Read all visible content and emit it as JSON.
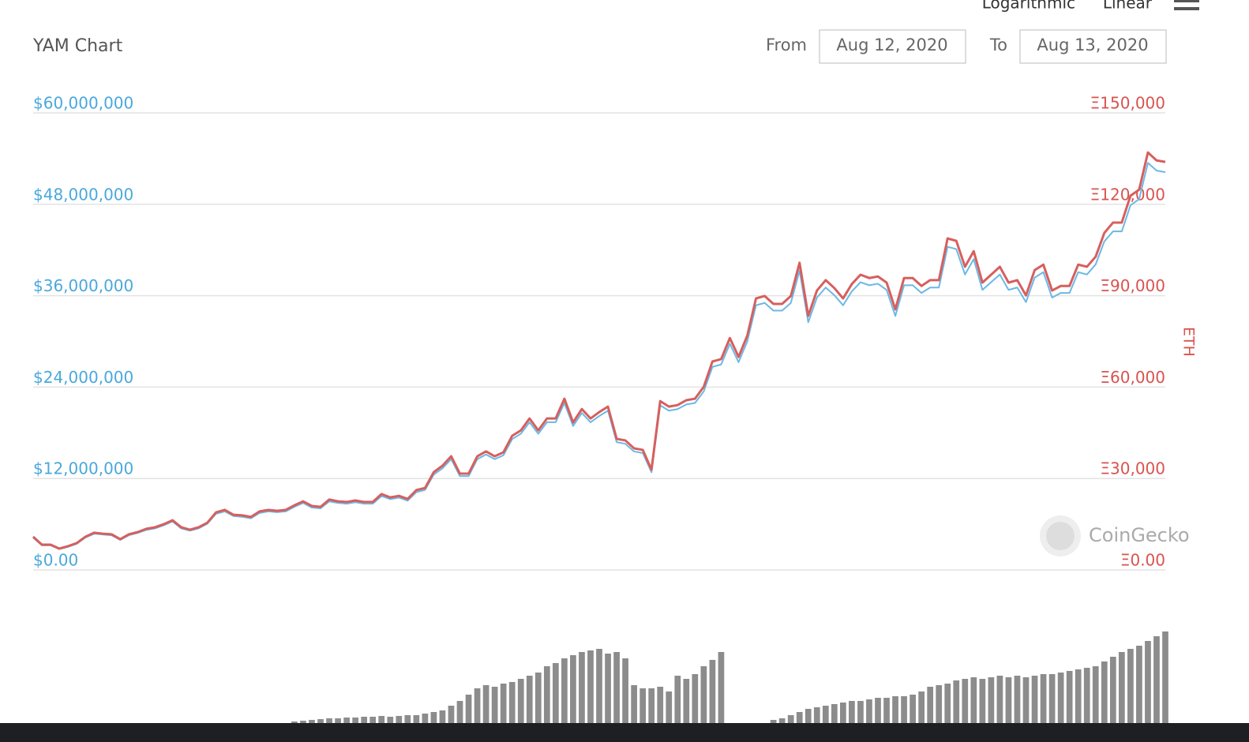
{
  "chart_data": {
    "type": "line",
    "title": "YAM Chart",
    "scale_options": [
      "Logarithmic",
      "Linear"
    ],
    "from_label": "From",
    "from_date": "Aug 12, 2020",
    "to_label": "To",
    "to_date": "Aug 13, 2020",
    "watermark": "CoinGecko",
    "y2label": "ETH",
    "ylim": [
      0,
      60000000
    ],
    "yticks": [
      {
        "value": 0,
        "label": "$0.00"
      },
      {
        "value": 12000000,
        "label": "$12,000,000"
      },
      {
        "value": 24000000,
        "label": "$24,000,000"
      },
      {
        "value": 36000000,
        "label": "$36,000,000"
      },
      {
        "value": 48000000,
        "label": "$48,000,000"
      },
      {
        "value": 60000000,
        "label": "$60,000,000"
      }
    ],
    "y2lim": [
      0,
      150000
    ],
    "y2ticks": [
      {
        "value": 0,
        "label": "Ξ0.00"
      },
      {
        "value": 30000,
        "label": "Ξ30,000"
      },
      {
        "value": 60000,
        "label": "Ξ60,000"
      },
      {
        "value": 90000,
        "label": "Ξ90,000"
      },
      {
        "value": 120000,
        "label": "Ξ120,000"
      },
      {
        "value": 150000,
        "label": "Ξ150,000"
      }
    ],
    "grid": true,
    "series": [
      {
        "color": "#6cb8e6",
        "axis": "y",
        "values": [
          4240000,
          3230000,
          3230000,
          2730000,
          3030000,
          3430000,
          4240000,
          4750000,
          4650000,
          4550000,
          3940000,
          4550000,
          4850000,
          5250000,
          5450000,
          5860000,
          6360000,
          5450000,
          5150000,
          5450000,
          6060000,
          7370000,
          7680000,
          7070000,
          6970000,
          6770000,
          7470000,
          7680000,
          7580000,
          7680000,
          8280000,
          8790000,
          8180000,
          8080000,
          8990000,
          8790000,
          8690000,
          8890000,
          8690000,
          8690000,
          9700000,
          9290000,
          9490000,
          9090000,
          10200000,
          10500000,
          12520000,
          13330000,
          14540000,
          12320000,
          12320000,
          14540000,
          15150000,
          14540000,
          15050000,
          17170000,
          17880000,
          19390000,
          17880000,
          19390000,
          19390000,
          21920000,
          18890000,
          20600000,
          19390000,
          20200000,
          20910000,
          16770000,
          16560000,
          15550000,
          15350000,
          12830000,
          21610000,
          20910000,
          21110000,
          21720000,
          21920000,
          23430000,
          26660000,
          26970000,
          29690000,
          27270000,
          30000000,
          34740000,
          35050000,
          34040000,
          34040000,
          35050000,
          39290000,
          32520000,
          35750000,
          37070000,
          36060000,
          34740000,
          36560000,
          37770000,
          37370000,
          37570000,
          36760000,
          33330000,
          37370000,
          37370000,
          36360000,
          37070000,
          37070000,
          42420000,
          42120000,
          38780000,
          40800000,
          36760000,
          37770000,
          38780000,
          36760000,
          37070000,
          35150000,
          38380000,
          39090000,
          35750000,
          36360000,
          36360000,
          39090000,
          38780000,
          40100000,
          43130000,
          44440000,
          44440000,
          47870000,
          48680000,
          53430000,
          52420000,
          52220000
        ]
      },
      {
        "color": "#d65f5d",
        "axis": "y2",
        "values": [
          10900,
          8300,
          8300,
          7000,
          7800,
          8800,
          10900,
          12200,
          11900,
          11700,
          10100,
          11700,
          12400,
          13500,
          14000,
          15000,
          16300,
          14000,
          13200,
          14000,
          15500,
          18900,
          19700,
          18100,
          17900,
          17400,
          19200,
          19700,
          19400,
          19700,
          21200,
          22500,
          21000,
          20700,
          23100,
          22500,
          22300,
          22800,
          22300,
          22300,
          24900,
          23800,
          24300,
          23300,
          26200,
          26900,
          32100,
          34200,
          37300,
          31600,
          31600,
          37300,
          38900,
          37300,
          38600,
          44000,
          45800,
          49700,
          45800,
          49700,
          49700,
          56200,
          48400,
          52800,
          49700,
          51800,
          53600,
          43000,
          42500,
          39900,
          39400,
          32900,
          55400,
          53600,
          54100,
          55700,
          56200,
          60100,
          68400,
          69200,
          76100,
          69900,
          76900,
          89100,
          89900,
          87300,
          87300,
          89900,
          100800,
          83400,
          91700,
          95100,
          92500,
          89100,
          93800,
          96900,
          95800,
          96300,
          94300,
          85500,
          95800,
          95800,
          93200,
          95100,
          95100,
          108800,
          108000,
          99500,
          104600,
          94300,
          96900,
          99500,
          94300,
          95100,
          90100,
          98400,
          100200,
          91700,
          93200,
          93200,
          100200,
          99500,
          102800,
          110600,
          114000,
          114000,
          122800,
          124800,
          137000,
          134400,
          133900
        ]
      }
    ],
    "volume": {
      "color": "#8c8c8c",
      "values": [
        0,
        0,
        0,
        0,
        0,
        0,
        0,
        0,
        0,
        0,
        0,
        0,
        0,
        0,
        0,
        0,
        0,
        0,
        0,
        0,
        0,
        0,
        0,
        0,
        0,
        0,
        0,
        0,
        0,
        0,
        2,
        3,
        4,
        5,
        6,
        6,
        7,
        7,
        8,
        8,
        9,
        8,
        9,
        10,
        10,
        12,
        14,
        16,
        22,
        28,
        36,
        44,
        48,
        46,
        50,
        52,
        56,
        60,
        64,
        72,
        76,
        82,
        86,
        90,
        92,
        94,
        88,
        90,
        82,
        48,
        44,
        44,
        46,
        40,
        60,
        56,
        62,
        72,
        80,
        90,
        0,
        0,
        0,
        0,
        0,
        4,
        6,
        10,
        14,
        18,
        20,
        22,
        24,
        26,
        28,
        28,
        30,
        32,
        32,
        34,
        34,
        36,
        40,
        46,
        48,
        50,
        54,
        56,
        58,
        56,
        58,
        60,
        58,
        60,
        58,
        60,
        62,
        62,
        64,
        66,
        68,
        70,
        72,
        78,
        84,
        90,
        94,
        98,
        104,
        110,
        116
      ]
    }
  }
}
